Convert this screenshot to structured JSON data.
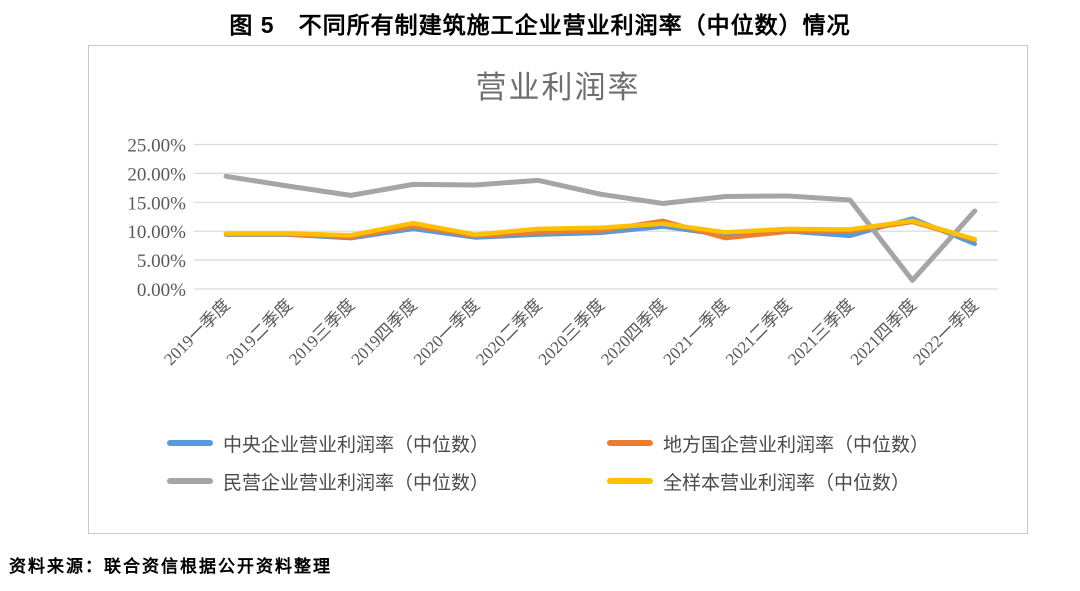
{
  "figure_title": "图 5　不同所有制建筑施工企业营业利润率（中位数）情况",
  "source_note": "资料来源：联合资信根据公开资料整理",
  "chart_data": {
    "type": "line",
    "title": "营业利润率",
    "categories": [
      "2019一季度",
      "2019二季度",
      "2019三季度",
      "2019四季度",
      "2020一季度",
      "2020二季度",
      "2020三季度",
      "2020四季度",
      "2021一季度",
      "2021二季度",
      "2021三季度",
      "2021四季度",
      "2022一季度"
    ],
    "series": [
      {
        "id": "central",
        "name": "中央企业营业利润率（中位数）",
        "color": "#5B9BD5",
        "values": [
          9.4,
          9.4,
          8.8,
          10.4,
          8.9,
          9.4,
          9.7,
          10.8,
          9.3,
          10.0,
          9.2,
          12.2,
          7.8
        ]
      },
      {
        "id": "local-soe",
        "name": "地方国企营业利润率（中位数）",
        "color": "#ED7D31",
        "values": [
          9.5,
          9.5,
          9.0,
          10.9,
          9.2,
          9.8,
          10.1,
          11.8,
          8.8,
          9.9,
          10.0,
          11.6,
          8.5
        ]
      },
      {
        "id": "private",
        "name": "民营企业营业利润率（中位数）",
        "color": "#A5A5A5",
        "values": [
          19.5,
          17.8,
          16.2,
          18.1,
          18.0,
          18.8,
          16.4,
          14.8,
          16.0,
          16.1,
          15.4,
          1.5,
          13.5
        ]
      },
      {
        "id": "full-sample",
        "name": "全样本营业利润率（中位数）",
        "color": "#FFC000",
        "values": [
          9.6,
          9.6,
          9.3,
          11.4,
          9.4,
          10.4,
          10.6,
          11.3,
          9.8,
          10.4,
          10.3,
          11.8,
          8.6
        ]
      }
    ],
    "ylim": [
      0,
      25
    ],
    "y_ticks": [
      {
        "value": 0,
        "label": "0.00%"
      },
      {
        "value": 5,
        "label": "5.00%"
      },
      {
        "value": 10,
        "label": "10.00%"
      },
      {
        "value": 15,
        "label": "15.00%"
      },
      {
        "value": 20,
        "label": "20.00%"
      },
      {
        "value": 25,
        "label": "25.00%"
      }
    ],
    "grid": true,
    "legend_position": "bottom"
  }
}
